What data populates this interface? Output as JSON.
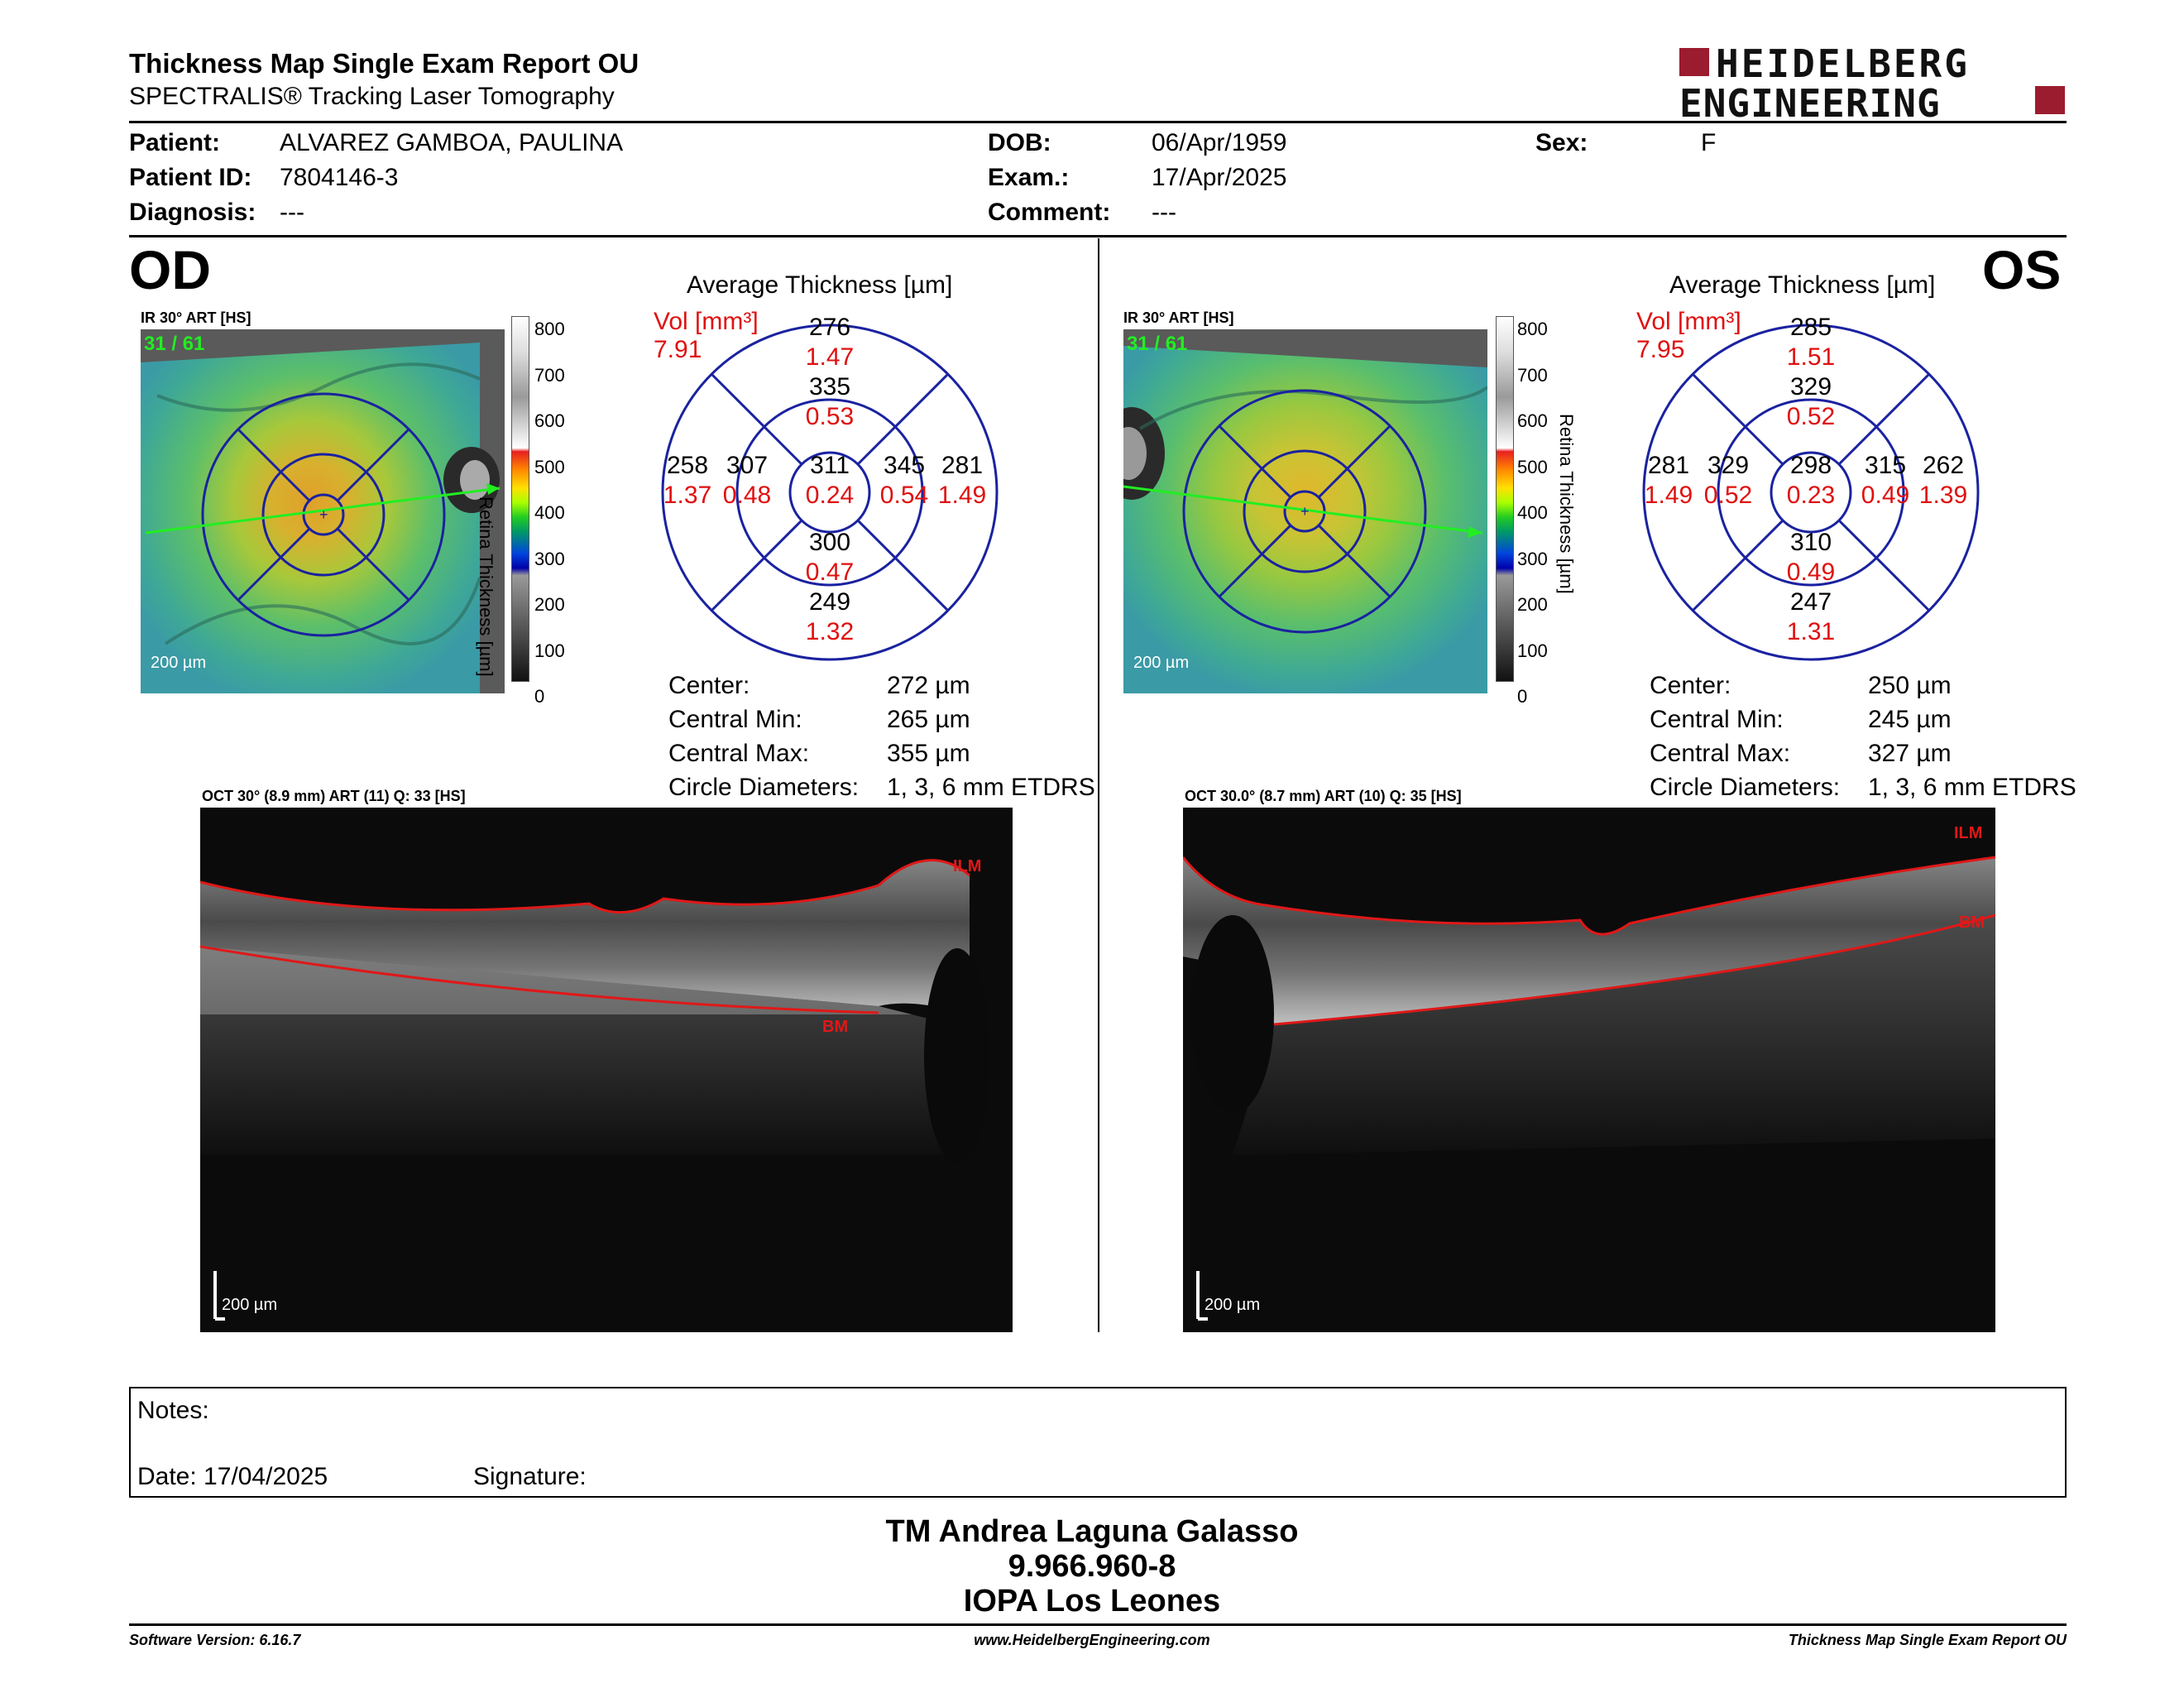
{
  "header": {
    "title": "Thickness Map Single Exam Report OU",
    "subtitle": "SPECTRALIS® Tracking Laser Tomography",
    "logo_line1": "HEIDELBERG",
    "logo_line2": "ENGINEERING",
    "logo_color": "#9b1c2e"
  },
  "patient": {
    "patient_label": "Patient:",
    "patient_value": "ALVAREZ GAMBOA, PAULINA",
    "id_label": "Patient ID:",
    "id_value": "7804146-3",
    "diag_label": "Diagnosis:",
    "diag_value": "---",
    "dob_label": "DOB:",
    "dob_value": "06/Apr/1959",
    "exam_label": "Exam.:",
    "exam_value": "17/Apr/2025",
    "comment_label": "Comment:",
    "comment_value": "---",
    "sex_label": "Sex:",
    "sex_value": "F"
  },
  "scale": {
    "label": "Retina Thickness [µm]",
    "ticks": [
      "800",
      "700",
      "600",
      "500",
      "400",
      "300",
      "200",
      "100",
      "0"
    ]
  },
  "od": {
    "eye": "OD",
    "ir_caption": "IR 30° ART [HS]",
    "frame": "31 / 61",
    "scalebar": "200 µm",
    "avg_title": "Average Thickness [µm]",
    "vol_label": "Vol [mm³]",
    "vol_value": "7.91",
    "etdrs": {
      "center": [
        "311",
        "0.24"
      ],
      "inner_sup": [
        "335",
        "0.53"
      ],
      "inner_inf": [
        "300",
        "0.47"
      ],
      "inner_nas_left": [
        "307",
        "0.48"
      ],
      "inner_nas_right": [
        "345",
        "0.54"
      ],
      "outer_sup": [
        "276",
        "1.47"
      ],
      "outer_inf": [
        "249",
        "1.32"
      ],
      "outer_left": [
        "258",
        "1.37"
      ],
      "outer_right": [
        "281",
        "1.49"
      ]
    },
    "stats": [
      [
        "Center:",
        "272 µm"
      ],
      [
        "Central Min:",
        "265 µm"
      ],
      [
        "Central Max:",
        "355 µm"
      ],
      [
        "Circle Diameters:",
        "1, 3, 6 mm ETDRS"
      ]
    ],
    "oct_caption": "OCT 30° (8.9 mm) ART (11) Q: 33 [HS]",
    "ilm": "ILM",
    "bm": "BM",
    "oct_scalebar": "200 µm"
  },
  "os": {
    "eye": "OS",
    "ir_caption": "IR 30° ART [HS]",
    "frame": "31 / 61",
    "scalebar": "200 µm",
    "avg_title": "Average Thickness [µm]",
    "vol_label": "Vol [mm³]",
    "vol_value": "7.95",
    "etdrs": {
      "center": [
        "298",
        "0.23"
      ],
      "inner_sup": [
        "329",
        "0.52"
      ],
      "inner_inf": [
        "310",
        "0.49"
      ],
      "inner_nas_left": [
        "329",
        "0.52"
      ],
      "inner_nas_right": [
        "315",
        "0.49"
      ],
      "outer_sup": [
        "285",
        "1.51"
      ],
      "outer_inf": [
        "247",
        "1.31"
      ],
      "outer_left": [
        "281",
        "1.49"
      ],
      "outer_right": [
        "262",
        "1.39"
      ]
    },
    "stats": [
      [
        "Center:",
        "250 µm"
      ],
      [
        "Central Min:",
        "245 µm"
      ],
      [
        "Central Max:",
        "327 µm"
      ],
      [
        "Circle Diameters:",
        "1, 3, 6 mm ETDRS"
      ]
    ],
    "oct_caption": "OCT 30.0° (8.7 mm) ART (10) Q: 35 [HS]",
    "ilm": "ILM",
    "bm": "BM",
    "oct_scalebar": "200 µm"
  },
  "notes": {
    "notes_label": "Notes:",
    "date_label": "Date: 17/04/2025",
    "signature_label": "Signature:"
  },
  "signature_block": {
    "name": "TM Andrea Laguna Galasso",
    "id": "9.966.960-8",
    "org": "IOPA Los Leones"
  },
  "footer": {
    "left": "Software Version: 6.16.7",
    "center": "www.HeidelbergEngineering.com",
    "right": "Thickness Map Single Exam Report OU"
  }
}
